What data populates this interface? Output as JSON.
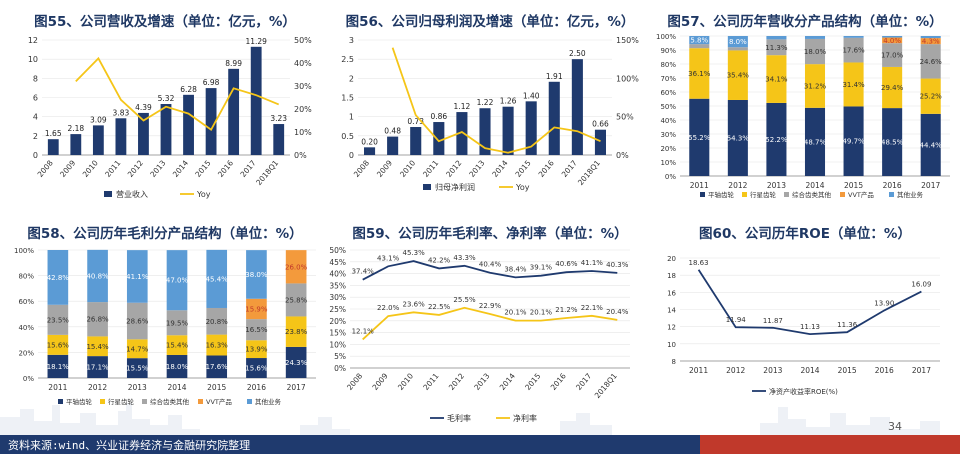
{
  "page": {
    "footer_source": "资料来源:wind、兴业证券经济与金融研究院整理",
    "page_number": "34",
    "colors": {
      "navy": "#1f3a6e",
      "yellow": "#f5c518",
      "gray": "#a6a6a6",
      "orange": "#f39a3c",
      "blue": "#5b9bd5",
      "red": "#c0392b"
    }
  },
  "chart_data": [
    {
      "id": "c55",
      "type": "bar",
      "title": "图55、公司营收及增速（单位：亿元，%）",
      "categories": [
        "2008",
        "2009",
        "2010",
        "2011",
        "2012",
        "2013",
        "2014",
        "2015",
        "2016",
        "2017",
        "2018Q1"
      ],
      "series": [
        {
          "name": "营业收入",
          "kind": "bar",
          "axis": "left",
          "values": [
            1.65,
            2.18,
            3.09,
            3.83,
            4.39,
            5.32,
            6.28,
            6.98,
            8.99,
            11.29,
            3.23
          ],
          "labels": [
            "1.65",
            "2.18",
            "3.09",
            "3.83",
            "4.39",
            "5.32",
            "6.28",
            "6.98",
            "8.99",
            "11.29",
            "3.23"
          ]
        },
        {
          "name": "Yoy",
          "kind": "line",
          "axis": "right",
          "values": [
            null,
            32,
            42,
            24,
            15,
            21,
            18,
            11,
            29,
            26,
            22
          ]
        }
      ],
      "yleft": {
        "min": 0,
        "max": 12,
        "ticks": [
          0,
          2,
          4,
          6,
          8,
          10,
          12
        ],
        "tick_labels": [
          "0",
          "2",
          "4",
          "6",
          "8",
          "10",
          "12"
        ]
      },
      "yright": {
        "min": 0,
        "max": 50,
        "ticks": [
          0,
          10,
          20,
          30,
          40,
          50
        ],
        "tick_labels": [
          "0%",
          "10%",
          "20%",
          "30%",
          "40%",
          "50%"
        ]
      }
    },
    {
      "id": "c56",
      "type": "bar",
      "title": "图56、公司归母利润及增速（单位：亿元，%）",
      "categories": [
        "2008",
        "2009",
        "2010",
        "2011",
        "2012",
        "2013",
        "2014",
        "2015",
        "2016",
        "2017",
        "2018Q1"
      ],
      "series": [
        {
          "name": "归母净利润",
          "kind": "bar",
          "axis": "left",
          "values": [
            0.2,
            0.48,
            0.73,
            0.86,
            1.12,
            1.22,
            1.26,
            1.4,
            1.91,
            2.5,
            0.66
          ],
          "labels": [
            "0.20",
            "0.48",
            "0.73",
            "0.86",
            "1.12",
            "1.22",
            "1.26",
            "1.40",
            "1.91",
            "2.50",
            "0.66"
          ]
        },
        {
          "name": "Yoy",
          "kind": "line",
          "axis": "right",
          "values": [
            null,
            140,
            52,
            18,
            30,
            9,
            3,
            11,
            36,
            31,
            18
          ]
        }
      ],
      "yleft": {
        "min": 0,
        "max": 3,
        "ticks": [
          0,
          0.5,
          1,
          1.5,
          2,
          2.5,
          3
        ],
        "tick_labels": [
          "0",
          "0.5",
          "1",
          "1.5",
          "2",
          "2.5",
          "3"
        ]
      },
      "yright": {
        "min": 0,
        "max": 150,
        "ticks": [
          0,
          50,
          100,
          150
        ],
        "tick_labels": [
          "0%",
          "50%",
          "100%",
          "150%"
        ]
      }
    },
    {
      "id": "c57",
      "type": "bar",
      "stacked": true,
      "title": "图57、公司历年营收分产品结构（单位：%）",
      "categories": [
        "2011",
        "2012",
        "2013",
        "2014",
        "2015",
        "2016",
        "2017"
      ],
      "series": [
        {
          "name": "平轴齿轮",
          "values": [
            55.2,
            54.3,
            52.2,
            48.7,
            49.7,
            48.5,
            44.4
          ],
          "labels": [
            "55.2%",
            "54.3%",
            "52.2%",
            "48.7%",
            "49.7%",
            "48.5%",
            "44.4%"
          ]
        },
        {
          "name": "行星齿轮",
          "values": [
            36.1,
            35.4,
            34.1,
            31.2,
            31.4,
            29.4,
            25.2
          ],
          "labels": [
            "36.1%",
            "35.4%",
            "34.1%",
            "31.2%",
            "31.4%",
            "29.4%",
            "25.2%"
          ]
        },
        {
          "name": "综合齿类其他",
          "values": [
            2.9,
            2.3,
            11.3,
            18.0,
            17.6,
            17.0,
            24.6
          ],
          "labels": [
            "",
            "",
            "11.3%",
            "18.0%",
            "17.6%",
            "17.0%",
            "24.6%"
          ]
        },
        {
          "name": "VVT产品",
          "values": [
            0,
            0,
            0,
            0,
            0,
            4.0,
            4.3
          ],
          "labels": [
            "",
            "",
            "",
            "",
            "",
            "4.0%",
            "4.3%"
          ]
        },
        {
          "name": "其他业务",
          "values": [
            5.8,
            8.0,
            2.4,
            2.1,
            1.3,
            1.1,
            1.5
          ],
          "labels": [
            "5.8%",
            "8.0%",
            "",
            "",
            "",
            "",
            ""
          ]
        }
      ],
      "yleft": {
        "min": 0,
        "max": 100,
        "ticks": [
          0,
          10,
          20,
          30,
          40,
          50,
          60,
          70,
          80,
          90,
          100
        ],
        "tick_labels": [
          "0%",
          "10%",
          "20%",
          "30%",
          "40%",
          "50%",
          "60%",
          "70%",
          "80%",
          "90%",
          "100%"
        ]
      }
    },
    {
      "id": "c58",
      "type": "bar",
      "stacked": true,
      "title": "图58、公司历年毛利分产品结构（单位：%）",
      "categories": [
        "2011",
        "2012",
        "2013",
        "2014",
        "2015",
        "2016",
        "2017"
      ],
      "series": [
        {
          "name": "平轴齿轮",
          "values": [
            18.1,
            17.1,
            15.5,
            18.0,
            17.6,
            15.6,
            24.3
          ],
          "labels": [
            "18.1%",
            "17.1%",
            "15.5%",
            "18.0%",
            "17.6%",
            "15.6%",
            "24.3%"
          ]
        },
        {
          "name": "行星齿轮",
          "values": [
            15.6,
            15.4,
            14.7,
            15.4,
            16.3,
            13.9,
            23.8
          ],
          "labels": [
            "15.6%",
            "15.4%",
            "14.7%",
            "15.4%",
            "16.3%",
            "13.9%",
            "23.8%"
          ]
        },
        {
          "name": "综合齿类其他",
          "values": [
            23.5,
            26.8,
            28.6,
            19.5,
            20.8,
            16.5,
            25.8
          ],
          "labels": [
            "23.5%",
            "26.8%",
            "28.6%",
            "19.5%",
            "20.8%",
            "16.5%",
            "25.8%"
          ]
        },
        {
          "name": "VVT产品",
          "values": [
            0,
            0,
            0,
            0,
            0,
            15.9,
            26.0
          ],
          "labels": [
            "",
            "",
            "",
            "",
            "",
            "15.9%",
            "26.0%"
          ]
        },
        {
          "name": "其他业务",
          "values": [
            42.8,
            40.8,
            41.1,
            47.0,
            45.4,
            38.0,
            0
          ],
          "labels": [
            "42.8%",
            "40.8%",
            "41.1%",
            "47.0%",
            "45.4%",
            "38.0%",
            ""
          ]
        }
      ],
      "yleft": {
        "min": 0,
        "max": 100,
        "ticks": [
          0,
          20,
          40,
          60,
          80,
          100
        ],
        "tick_labels": [
          "0%",
          "20%",
          "40%",
          "60%",
          "80%",
          "100%"
        ]
      }
    },
    {
      "id": "c59",
      "type": "line",
      "title": "图59、公司历年毛利率、净利率（单位：%）",
      "categories": [
        "2008",
        "2009",
        "2010",
        "2011",
        "2012",
        "2013",
        "2014",
        "2015",
        "2016",
        "2017",
        "2018Q1"
      ],
      "series": [
        {
          "name": "毛利率",
          "values": [
            37.4,
            43.1,
            45.3,
            42.2,
            43.3,
            40.4,
            38.4,
            39.1,
            40.6,
            41.1,
            40.3
          ],
          "labels": [
            "37.4%",
            "43.1%",
            "45.3%",
            "42.2%",
            "43.3%",
            "40.4%",
            "38.4%",
            "39.1%",
            "40.6%",
            "41.1%",
            "40.3%"
          ]
        },
        {
          "name": "净利率",
          "values": [
            12.1,
            22.0,
            23.6,
            22.5,
            25.5,
            22.9,
            20.1,
            20.1,
            21.2,
            22.1,
            20.4
          ],
          "labels": [
            "12.1%",
            "22.0%",
            "23.6%",
            "22.5%",
            "25.5%",
            "22.9%",
            "20.1%",
            "20.1%",
            "21.2%",
            "22.1%",
            "20.4%"
          ]
        }
      ],
      "yleft": {
        "min": 0,
        "max": 50,
        "ticks": [
          0,
          5,
          10,
          15,
          20,
          25,
          30,
          35,
          40,
          45,
          50
        ],
        "tick_labels": [
          "0%",
          "5%",
          "10%",
          "15%",
          "20%",
          "25%",
          "30%",
          "35%",
          "40%",
          "45%",
          "50%"
        ]
      }
    },
    {
      "id": "c60",
      "type": "line",
      "title": "图60、公司历年ROE（单位：%）",
      "categories": [
        "2011",
        "2012",
        "2013",
        "2014",
        "2015",
        "2016",
        "2017"
      ],
      "series": [
        {
          "name": "净资产收益率ROE(%)",
          "values": [
            18.63,
            11.94,
            11.87,
            11.13,
            11.36,
            13.9,
            16.09
          ],
          "labels": [
            "18.63",
            "11.94",
            "11.87",
            "11.13",
            "11.36",
            "13.90",
            "16.09"
          ]
        }
      ],
      "yleft": {
        "min": 8,
        "max": 20,
        "ticks": [
          8,
          10,
          12,
          14,
          16,
          18,
          20
        ],
        "tick_labels": [
          "8",
          "10",
          "12",
          "14",
          "16",
          "18",
          "20"
        ]
      }
    }
  ]
}
